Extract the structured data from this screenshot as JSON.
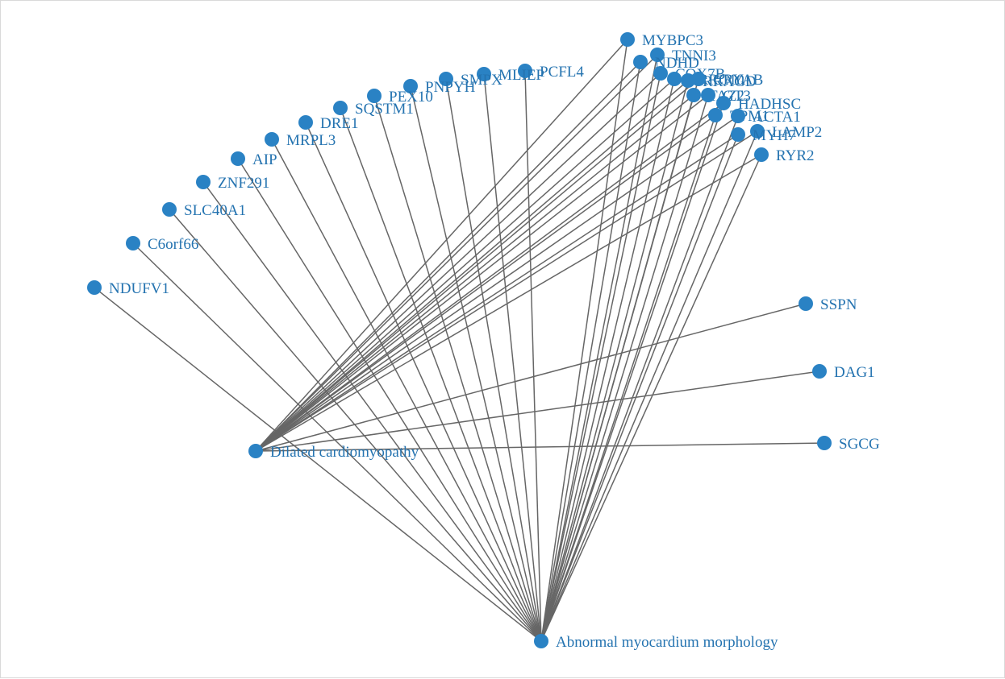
{
  "graph": {
    "node_color": "#2a82c4",
    "label_color": "#2473b0",
    "edge_color": "#666666",
    "hubs": [
      {
        "id": "dcm",
        "label": "Dilated cardiomyopathy"
      },
      {
        "id": "amm",
        "label": "Abnormal myocardium morphology"
      }
    ],
    "genes": [
      {
        "id": "MYBPC3",
        "label": "MYBPC3"
      },
      {
        "id": "TNNI3",
        "label": "TNNI3"
      },
      {
        "id": "NDHD",
        "label": "NDHD"
      },
      {
        "id": "COX7B",
        "label": "COX7B"
      },
      {
        "id": "LRRC10",
        "label": "LRRC10"
      },
      {
        "id": "RRAGD",
        "label": "RRAGD"
      },
      {
        "id": "CRYAB",
        "label": "CRYAB"
      },
      {
        "id": "TAZ2",
        "label": "TAZ2"
      },
      {
        "id": "GT3",
        "label": "GT3"
      },
      {
        "id": "HADHSC",
        "label": "HADHSC"
      },
      {
        "id": "TPM1",
        "label": "TPM1"
      },
      {
        "id": "ACTA1",
        "label": "ACTA1"
      },
      {
        "id": "LAMP2",
        "label": "LAMP2"
      },
      {
        "id": "MYH7",
        "label": "MYH7"
      },
      {
        "id": "RYR2",
        "label": "RYR2"
      },
      {
        "id": "PCFL4",
        "label": "PCFL4"
      },
      {
        "id": "MLIEP",
        "label": "MLIEP"
      },
      {
        "id": "SMPX",
        "label": "SMPX"
      },
      {
        "id": "PNPYH",
        "label": "PNPYH"
      },
      {
        "id": "PEX10",
        "label": "PEX10"
      },
      {
        "id": "SQSTM1",
        "label": "SQSTM1"
      },
      {
        "id": "DRE1",
        "label": "DRE1"
      },
      {
        "id": "MRPL3",
        "label": "MRPL3"
      },
      {
        "id": "AIP",
        "label": "AIP"
      },
      {
        "id": "ZNF291",
        "label": "ZNF291"
      },
      {
        "id": "SLC40A1",
        "label": "SLC40A1"
      },
      {
        "id": "C6orf66",
        "label": "C6orf66"
      },
      {
        "id": "NDUFV1",
        "label": "NDUFV1"
      },
      {
        "id": "SSPN",
        "label": "SSPN"
      },
      {
        "id": "DAG1",
        "label": "DAG1"
      },
      {
        "id": "SGCG",
        "label": "SGCG"
      }
    ],
    "edges": [
      [
        "dcm",
        "MYBPC3"
      ],
      [
        "dcm",
        "TNNI3"
      ],
      [
        "dcm",
        "NDHD"
      ],
      [
        "dcm",
        "COX7B"
      ],
      [
        "dcm",
        "LRRC10"
      ],
      [
        "dcm",
        "RRAGD"
      ],
      [
        "dcm",
        "CRYAB"
      ],
      [
        "dcm",
        "TAZ2"
      ],
      [
        "dcm",
        "GT3"
      ],
      [
        "dcm",
        "HADHSC"
      ],
      [
        "dcm",
        "TPM1"
      ],
      [
        "dcm",
        "ACTA1"
      ],
      [
        "dcm",
        "LAMP2"
      ],
      [
        "dcm",
        "MYH7"
      ],
      [
        "dcm",
        "RYR2"
      ],
      [
        "dcm",
        "SSPN"
      ],
      [
        "dcm",
        "DAG1"
      ],
      [
        "dcm",
        "SGCG"
      ],
      [
        "amm",
        "MYBPC3"
      ],
      [
        "amm",
        "TNNI3"
      ],
      [
        "amm",
        "NDHD"
      ],
      [
        "amm",
        "COX7B"
      ],
      [
        "amm",
        "LRRC10"
      ],
      [
        "amm",
        "RRAGD"
      ],
      [
        "amm",
        "CRYAB"
      ],
      [
        "amm",
        "TAZ2"
      ],
      [
        "amm",
        "GT3"
      ],
      [
        "amm",
        "HADHSC"
      ],
      [
        "amm",
        "TPM1"
      ],
      [
        "amm",
        "ACTA1"
      ],
      [
        "amm",
        "LAMP2"
      ],
      [
        "amm",
        "MYH7"
      ],
      [
        "amm",
        "RYR2"
      ],
      [
        "amm",
        "PCFL4"
      ],
      [
        "amm",
        "MLIEP"
      ],
      [
        "amm",
        "SMPX"
      ],
      [
        "amm",
        "PNPYH"
      ],
      [
        "amm",
        "PEX10"
      ],
      [
        "amm",
        "SQSTM1"
      ],
      [
        "amm",
        "DRE1"
      ],
      [
        "amm",
        "MRPL3"
      ],
      [
        "amm",
        "AIP"
      ],
      [
        "amm",
        "ZNF291"
      ],
      [
        "amm",
        "SLC40A1"
      ],
      [
        "amm",
        "C6orf66"
      ],
      [
        "amm",
        "NDUFV1"
      ]
    ]
  }
}
